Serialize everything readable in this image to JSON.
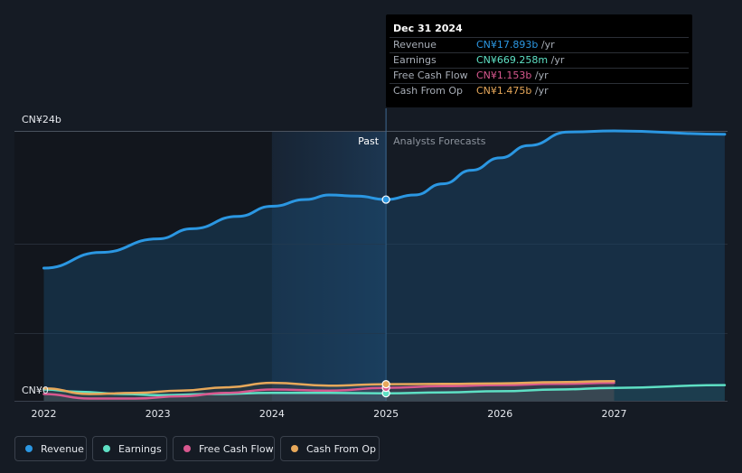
{
  "tooltip": {
    "date": "Dec 31 2024",
    "rows": [
      {
        "label": "Revenue",
        "value": "CN¥17.893b",
        "unit": " /yr",
        "color": "#2b97e2"
      },
      {
        "label": "Earnings",
        "value": "CN¥669.258m",
        "unit": " /yr",
        "color": "#5ee0c4"
      },
      {
        "label": "Free Cash Flow",
        "value": "CN¥1.153b",
        "unit": " /yr",
        "color": "#d8588f"
      },
      {
        "label": "Cash From Op",
        "value": "CN¥1.475b",
        "unit": " /yr",
        "color": "#e7a85a"
      }
    ]
  },
  "legend": [
    {
      "label": "Revenue",
      "color": "#2b97e2"
    },
    {
      "label": "Earnings",
      "color": "#5ee0c4"
    },
    {
      "label": "Free Cash Flow",
      "color": "#d8588f"
    },
    {
      "label": "Cash From Op",
      "color": "#e7a85a"
    }
  ],
  "chart_data": {
    "type": "line",
    "y_top_label": "CN¥24b",
    "y_bottom_label": "CN¥0",
    "ylim": [
      0,
      24
    ],
    "xlim": [
      2021.9,
      2027.97
    ],
    "x_ticks": [
      "2022",
      "2023",
      "2024",
      "2025",
      "2026",
      "2027"
    ],
    "past_label": "Past",
    "forecast_label": "Analysts Forecasts",
    "divider_x": 2025.0,
    "highlight_start_x": 2024.0,
    "series": [
      {
        "name": "Revenue",
        "color": "#2b97e2",
        "points": [
          [
            2022.0,
            11.8
          ],
          [
            2022.5,
            13.2
          ],
          [
            2023.0,
            14.4
          ],
          [
            2023.3,
            15.3
          ],
          [
            2023.7,
            16.4
          ],
          [
            2024.0,
            17.3
          ],
          [
            2024.3,
            17.9
          ],
          [
            2024.5,
            18.3
          ],
          [
            2024.75,
            18.2
          ],
          [
            2025.0,
            17.893
          ],
          [
            2025.25,
            18.3
          ],
          [
            2025.5,
            19.3
          ],
          [
            2025.75,
            20.5
          ],
          [
            2026.0,
            21.6
          ],
          [
            2026.25,
            22.7
          ],
          [
            2026.6,
            23.9
          ],
          [
            2027.0,
            24.0
          ],
          [
            2027.97,
            23.7
          ]
        ]
      },
      {
        "name": "Earnings",
        "color": "#5ee0c4",
        "points": [
          [
            2022.0,
            1.0
          ],
          [
            2022.3,
            0.8
          ],
          [
            2022.7,
            0.6
          ],
          [
            2023.0,
            0.5
          ],
          [
            2023.5,
            0.6
          ],
          [
            2024.0,
            0.7
          ],
          [
            2024.5,
            0.7
          ],
          [
            2025.0,
            0.669
          ],
          [
            2025.5,
            0.75
          ],
          [
            2026.0,
            0.85
          ],
          [
            2026.5,
            1.0
          ],
          [
            2027.0,
            1.15
          ],
          [
            2027.97,
            1.4
          ]
        ]
      },
      {
        "name": "Free Cash Flow",
        "color": "#d8588f",
        "points": [
          [
            2022.0,
            0.6
          ],
          [
            2022.4,
            0.2
          ],
          [
            2022.8,
            0.2
          ],
          [
            2023.2,
            0.4
          ],
          [
            2023.6,
            0.7
          ],
          [
            2024.0,
            1.0
          ],
          [
            2024.5,
            0.9
          ],
          [
            2025.0,
            1.153
          ],
          [
            2025.5,
            1.3
          ],
          [
            2026.0,
            1.4
          ],
          [
            2026.5,
            1.5
          ],
          [
            2027.0,
            1.6
          ]
        ]
      },
      {
        "name": "Cash From Op",
        "color": "#e7a85a",
        "points": [
          [
            2022.0,
            1.1
          ],
          [
            2022.4,
            0.6
          ],
          [
            2022.8,
            0.7
          ],
          [
            2023.2,
            0.9
          ],
          [
            2023.6,
            1.2
          ],
          [
            2024.0,
            1.6
          ],
          [
            2024.5,
            1.35
          ],
          [
            2025.0,
            1.475
          ],
          [
            2025.5,
            1.5
          ],
          [
            2026.0,
            1.55
          ],
          [
            2026.5,
            1.65
          ],
          [
            2027.0,
            1.75
          ]
        ]
      }
    ]
  }
}
